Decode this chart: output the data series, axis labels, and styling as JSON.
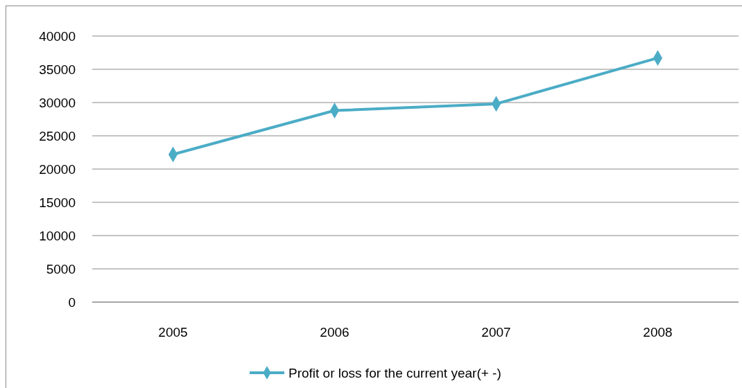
{
  "chart_data": {
    "type": "line",
    "categories": [
      "2005",
      "2006",
      "2007",
      "2008"
    ],
    "series": [
      {
        "name": "Profit or loss for the current  year(+ -)",
        "color": "#4bacc6",
        "values": [
          22200,
          28800,
          29800,
          36700
        ]
      }
    ],
    "ylim": [
      0,
      40000
    ],
    "yticks": [
      0,
      5000,
      10000,
      15000,
      20000,
      25000,
      30000,
      35000,
      40000
    ],
    "grid": "y",
    "legend": "bottom",
    "marker": "diamond",
    "line_style": "solid"
  }
}
